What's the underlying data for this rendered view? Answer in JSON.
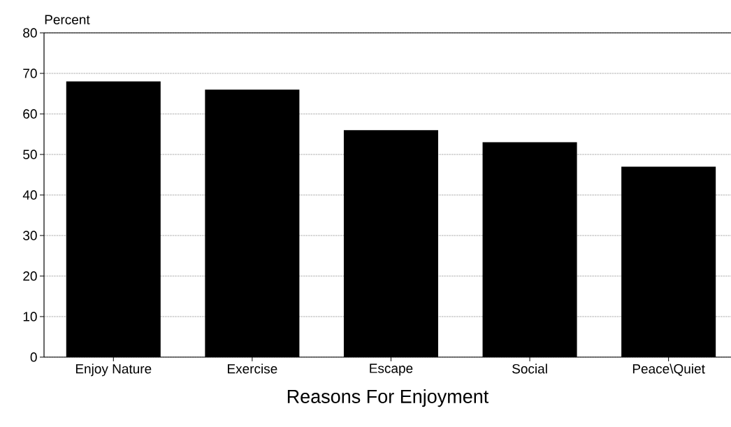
{
  "chart_data": {
    "type": "bar",
    "ylabel": "Percent",
    "xlabel": "Reasons For Enjoyment",
    "categories": [
      "Enjoy Nature",
      "Exercise",
      "Escape",
      "Social",
      "Peace\\Quiet"
    ],
    "values": [
      68,
      66,
      56,
      53,
      47
    ],
    "color": "#000000",
    "ylim": [
      0,
      80
    ],
    "yticks": [
      0,
      10,
      20,
      30,
      40,
      50,
      60,
      70,
      80
    ],
    "grid": "y"
  }
}
